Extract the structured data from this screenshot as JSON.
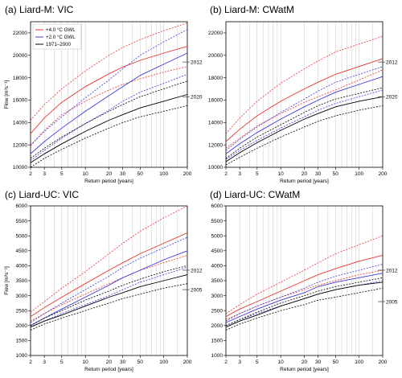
{
  "colors": {
    "red": "#e8342e",
    "blue": "#3a3ae0",
    "black": "#000000",
    "grid": "#c8c8c8"
  },
  "legend": [
    {
      "label": "+4.0 °C GWL",
      "color": "#e8342e"
    },
    {
      "label": "+2.0 °C GWL",
      "color": "#3a3ae0"
    },
    {
      "label": "1971–2000",
      "color": "#000000"
    }
  ],
  "chart_data": [
    {
      "type": "line",
      "title": "(a) Liard-M: VIC",
      "xlabel": "Return period [years]",
      "ylabel": "Flow [m³s⁻¹]",
      "xscale": "log",
      "xlim": [
        2,
        200
      ],
      "ylim": [
        10000,
        23000
      ],
      "xticks": [
        2,
        3,
        5,
        10,
        20,
        30,
        50,
        100,
        200
      ],
      "yticks": [
        10000,
        12000,
        14000,
        16000,
        18000,
        20000,
        22000
      ],
      "x": [
        2,
        3,
        5,
        10,
        20,
        30,
        50,
        100,
        200
      ],
      "reference_lines": [
        {
          "label": "2012",
          "value": 19400
        },
        {
          "label": "2020",
          "value": 16300
        }
      ],
      "series": [
        {
          "name": "+4.0 °C GWL",
          "line": "solid",
          "values": [
            13000,
            14400,
            15800,
            17200,
            18350,
            18950,
            19550,
            20200,
            20800
          ]
        },
        {
          "name": "+4.0 °C GWL",
          "line": "dotted",
          "values": [
            14200,
            15600,
            17000,
            18600,
            20000,
            20700,
            21400,
            22200,
            22900
          ]
        },
        {
          "name": "+4.0 °C GWL",
          "line": "dotted",
          "values": [
            11900,
            13300,
            14700,
            15900,
            16900,
            17400,
            17900,
            18500,
            19000
          ]
        },
        {
          "name": "+2.0 °C GWL",
          "line": "solid",
          "values": [
            11200,
            12300,
            13500,
            15000,
            16400,
            17200,
            18200,
            19200,
            20200
          ]
        },
        {
          "name": "+2.0 °C GWL",
          "line": "dotted",
          "values": [
            12000,
            13200,
            14500,
            16200,
            17800,
            18800,
            20000,
            21200,
            22300
          ]
        },
        {
          "name": "+2.0 °C GWL",
          "line": "dotted",
          "values": [
            10600,
            11500,
            12600,
            13900,
            15100,
            15900,
            16700,
            17500,
            18300
          ]
        },
        {
          "name": "1971–2000",
          "line": "solid",
          "values": [
            10400,
            11200,
            12100,
            13200,
            14200,
            14700,
            15300,
            15900,
            16500
          ]
        },
        {
          "name": "1971–2000",
          "line": "dotted",
          "values": [
            10800,
            11700,
            12700,
            13900,
            15000,
            15600,
            16300,
            17000,
            17700
          ]
        },
        {
          "name": "1971–2000",
          "line": "dotted",
          "values": [
            10000,
            10800,
            11600,
            12600,
            13500,
            14000,
            14500,
            15000,
            15500
          ]
        }
      ]
    },
    {
      "type": "line",
      "title": "(b) Liard-M: CWatM",
      "xlabel": "Return period [years]",
      "ylabel": "",
      "xscale": "log",
      "xlim": [
        2,
        200
      ],
      "ylim": [
        10000,
        23000
      ],
      "xticks": [
        2,
        3,
        5,
        10,
        20,
        30,
        50,
        100,
        200
      ],
      "yticks": [
        10000,
        12000,
        14000,
        16000,
        18000,
        20000,
        22000
      ],
      "x": [
        2,
        3,
        5,
        10,
        20,
        30,
        50,
        100,
        200
      ],
      "reference_lines": [
        {
          "label": "2012",
          "value": 19400
        },
        {
          "label": "2020",
          "value": 16300
        }
      ],
      "series": [
        {
          "name": "+4.0 °C GWL",
          "line": "solid",
          "values": [
            12300,
            13400,
            14600,
            15900,
            17000,
            17600,
            18300,
            19000,
            19700
          ]
        },
        {
          "name": "+4.0 °C GWL",
          "line": "dotted",
          "values": [
            13000,
            14400,
            15900,
            17500,
            18800,
            19500,
            20300,
            21000,
            21700
          ]
        },
        {
          "name": "+4.0 °C GWL",
          "line": "dotted",
          "values": [
            11700,
            12600,
            13700,
            14800,
            15800,
            16300,
            16900,
            17800,
            18700
          ]
        },
        {
          "name": "+2.0 °C GWL",
          "line": "solid",
          "values": [
            11200,
            12100,
            13100,
            14300,
            15400,
            16000,
            16700,
            17400,
            18100
          ]
        },
        {
          "name": "+2.0 °C GWL",
          "line": "dotted",
          "values": [
            11500,
            12500,
            13600,
            14900,
            16100,
            16800,
            17600,
            18300,
            19000
          ]
        },
        {
          "name": "+2.0 °C GWL",
          "line": "dotted",
          "values": [
            10700,
            11500,
            12400,
            13500,
            14500,
            15100,
            15700,
            16300,
            16900
          ]
        },
        {
          "name": "1971–2000",
          "line": "solid",
          "values": [
            10500,
            11300,
            12200,
            13300,
            14300,
            14800,
            15400,
            15900,
            16300
          ]
        },
        {
          "name": "1971–2000",
          "line": "dotted",
          "values": [
            10800,
            11700,
            12700,
            13800,
            14900,
            15500,
            16100,
            16600,
            17100
          ]
        },
        {
          "name": "1971–2000",
          "line": "dotted",
          "values": [
            10200,
            10900,
            11700,
            12700,
            13600,
            14100,
            14600,
            15100,
            15500
          ]
        }
      ]
    },
    {
      "type": "line",
      "title": "(c) Liard-UC: VIC",
      "xlabel": "Return period [years]",
      "ylabel": "Flow [m³s⁻¹]",
      "xscale": "log",
      "xlim": [
        2,
        200
      ],
      "ylim": [
        1000,
        6000
      ],
      "xticks": [
        2,
        3,
        5,
        10,
        20,
        30,
        50,
        100,
        200
      ],
      "yticks": [
        1000,
        1500,
        2000,
        2500,
        3000,
        3500,
        4000,
        4500,
        5000,
        5500,
        6000
      ],
      "x": [
        2,
        3,
        5,
        10,
        20,
        30,
        50,
        100,
        200
      ],
      "reference_lines": [
        {
          "label": "2012",
          "value": 3850
        },
        {
          "label": "2005",
          "value": 3200
        }
      ],
      "series": [
        {
          "name": "+4.0 °C GWL",
          "line": "solid",
          "values": [
            2300,
            2600,
            2950,
            3400,
            3850,
            4100,
            4400,
            4750,
            5100
          ]
        },
        {
          "name": "+4.0 °C GWL",
          "line": "dotted",
          "values": [
            2450,
            2800,
            3250,
            3800,
            4400,
            4750,
            5150,
            5600,
            6000
          ]
        },
        {
          "name": "+4.0 °C GWL",
          "line": "dotted",
          "values": [
            2150,
            2400,
            2700,
            3050,
            3400,
            3600,
            3850,
            4100,
            4350
          ]
        },
        {
          "name": "+2.0 °C GWL",
          "line": "solid",
          "values": [
            2000,
            2250,
            2550,
            2950,
            3350,
            3600,
            3850,
            4200,
            4500
          ]
        },
        {
          "name": "+2.0 °C GWL",
          "line": "dotted",
          "values": [
            2100,
            2400,
            2750,
            3200,
            3650,
            3950,
            4250,
            4600,
            4950
          ]
        },
        {
          "name": "+2.0 °C GWL",
          "line": "dotted",
          "values": [
            1950,
            2150,
            2400,
            2700,
            3000,
            3200,
            3450,
            3700,
            3950
          ]
        },
        {
          "name": "1971–2000",
          "line": "solid",
          "values": [
            1950,
            2150,
            2350,
            2650,
            2950,
            3100,
            3300,
            3500,
            3700
          ]
        },
        {
          "name": "1971–2000",
          "line": "dotted",
          "values": [
            2000,
            2250,
            2500,
            2850,
            3150,
            3350,
            3550,
            3800,
            4000
          ]
        },
        {
          "name": "1971–2000",
          "line": "dotted",
          "values": [
            1850,
            2050,
            2250,
            2500,
            2750,
            2900,
            3050,
            3250,
            3400
          ]
        }
      ]
    },
    {
      "type": "line",
      "title": "(d) Liard-UC: CWatM",
      "xlabel": "Return period [years]",
      "ylabel": "",
      "xscale": "log",
      "xlim": [
        2,
        200
      ],
      "ylim": [
        1000,
        6000
      ],
      "xticks": [
        2,
        3,
        5,
        10,
        20,
        30,
        50,
        100,
        200
      ],
      "yticks": [
        1000,
        1500,
        2000,
        2500,
        3000,
        3500,
        4000,
        4500,
        5000,
        5500,
        6000
      ],
      "x": [
        2,
        3,
        5,
        10,
        20,
        30,
        50,
        100,
        200
      ],
      "reference_lines": [
        {
          "label": "2012",
          "value": 3850
        },
        {
          "label": "2005",
          "value": 2800
        }
      ],
      "series": [
        {
          "name": "+4.0 °C GWL",
          "line": "solid",
          "values": [
            2300,
            2550,
            2800,
            3150,
            3500,
            3700,
            3900,
            4150,
            4350
          ]
        },
        {
          "name": "+4.0 °C GWL",
          "line": "dotted",
          "values": [
            2400,
            2700,
            3050,
            3450,
            3850,
            4100,
            4400,
            4700,
            5000
          ]
        },
        {
          "name": "+4.0 °C GWL",
          "line": "dotted",
          "values": [
            2200,
            2400,
            2650,
            2950,
            3200,
            3350,
            3500,
            3700,
            3850
          ]
        },
        {
          "name": "+2.0 °C GWL",
          "line": "solid",
          "values": [
            2100,
            2300,
            2550,
            2850,
            3100,
            3300,
            3450,
            3600,
            3750
          ]
        },
        {
          "name": "+2.0 °C GWL",
          "line": "dotted",
          "values": [
            2150,
            2400,
            2650,
            2950,
            3250,
            3450,
            3650,
            3850,
            4050
          ]
        },
        {
          "name": "+2.0 °C GWL",
          "line": "dotted",
          "values": [
            2000,
            2200,
            2400,
            2650,
            2900,
            3050,
            3200,
            3350,
            3500
          ]
        },
        {
          "name": "1971–2000",
          "line": "solid",
          "values": [
            1950,
            2150,
            2350,
            2650,
            2900,
            3050,
            3200,
            3350,
            3450
          ]
        },
        {
          "name": "1971–2000",
          "line": "dotted",
          "values": [
            2000,
            2200,
            2450,
            2750,
            3000,
            3150,
            3300,
            3450,
            3600
          ]
        },
        {
          "name": "1971–2000",
          "line": "dotted",
          "values": [
            1850,
            2050,
            2250,
            2500,
            2700,
            2850,
            2950,
            3100,
            3250
          ]
        }
      ]
    }
  ]
}
